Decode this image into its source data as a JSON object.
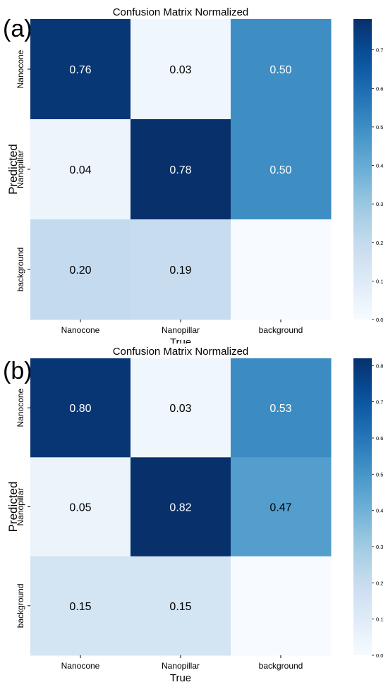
{
  "chart_data": [
    {
      "type": "heatmap",
      "panel_label": "(a)",
      "title": "Confusion Matrix Normalized",
      "xlabel": "True",
      "ylabel": "Predicted",
      "x_categories": [
        "Nanocone",
        "Nanopillar",
        "background"
      ],
      "y_categories": [
        "Nanocone",
        "Nanopillar",
        "background"
      ],
      "values": [
        [
          0.76,
          0.03,
          0.5
        ],
        [
          0.04,
          0.78,
          0.5
        ],
        [
          0.2,
          0.19,
          0.0
        ]
      ],
      "cell_labels": [
        [
          "0.76",
          "0.03",
          "0.50"
        ],
        [
          "0.04",
          "0.78",
          "0.50"
        ],
        [
          "0.20",
          "0.19",
          ""
        ]
      ],
      "colorbar": {
        "cmap": "Blues",
        "min": 0.0,
        "max": 0.78,
        "ticks": [
          0.0,
          0.1,
          0.2,
          0.3,
          0.4,
          0.5,
          0.6,
          0.7
        ],
        "tick_labels": [
          "0.0",
          "0.1",
          "0.2",
          "0.3",
          "0.4",
          "0.5",
          "0.6",
          "0.7"
        ]
      }
    },
    {
      "type": "heatmap",
      "panel_label": "(b)",
      "title": "Confusion Matrix Normalized",
      "xlabel": "True",
      "ylabel": "Predicted",
      "x_categories": [
        "Nanocone",
        "Nanopillar",
        "background"
      ],
      "y_categories": [
        "Nanocone",
        "Nanopillar",
        "background"
      ],
      "values": [
        [
          0.8,
          0.03,
          0.53
        ],
        [
          0.05,
          0.82,
          0.47
        ],
        [
          0.15,
          0.15,
          0.0
        ]
      ],
      "cell_labels": [
        [
          "0.80",
          "0.03",
          "0.53"
        ],
        [
          "0.05",
          "0.82",
          "0.47"
        ],
        [
          "0.15",
          "0.15",
          ""
        ]
      ],
      "colorbar": {
        "cmap": "Blues",
        "min": 0.0,
        "max": 0.82,
        "ticks": [
          0.0,
          0.1,
          0.2,
          0.3,
          0.4,
          0.5,
          0.6,
          0.7,
          0.8
        ],
        "tick_labels": [
          "0.0",
          "0.1",
          "0.2",
          "0.3",
          "0.4",
          "0.5",
          "0.6",
          "0.7",
          "0.8"
        ]
      }
    }
  ]
}
